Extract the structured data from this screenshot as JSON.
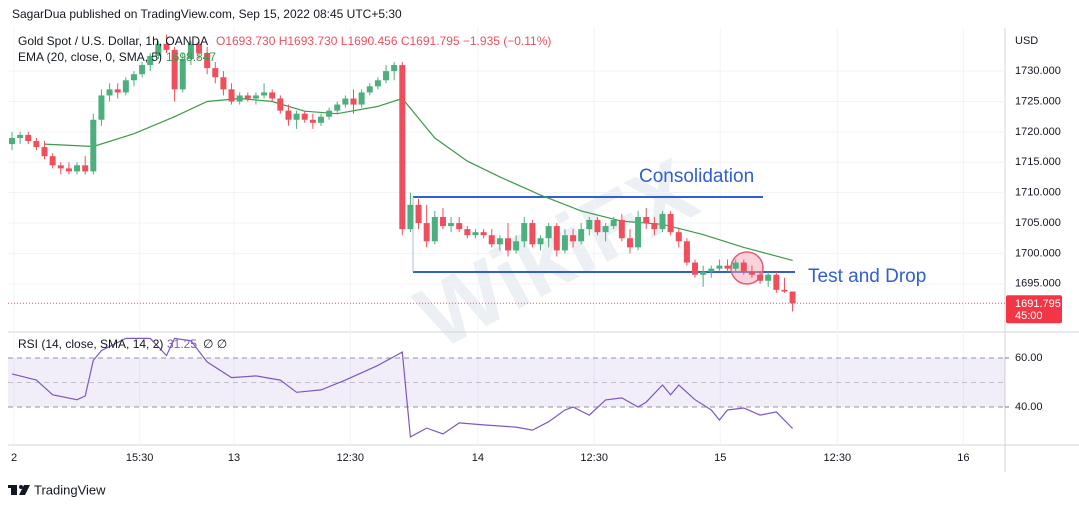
{
  "chart_data": {
    "type": "candlestick",
    "header": "SagarDua published on TradingView.com, Sep 15, 2022 08:45 UTC+5:30",
    "title": "Gold Spot / U.S. Dollar, 1h, OANDA",
    "ohlc_label": "O1693.730 H1693.730 L1690.456 C1691.795 −1.935 (−0.11%)",
    "currency": "USD",
    "up_color": "#4caf7d",
    "down_color": "#ef4f5c",
    "ohlc": [
      [
        1718,
        1720,
        1717,
        1719
      ],
      [
        1719,
        1720,
        1718,
        1719.5
      ],
      [
        1719.5,
        1720,
        1718,
        1718.5
      ],
      [
        1718.5,
        1719,
        1717,
        1717.5
      ],
      [
        1717.5,
        1718.5,
        1715.5,
        1716
      ],
      [
        1716,
        1716.5,
        1714,
        1714.5
      ],
      [
        1714.5,
        1715,
        1713,
        1714
      ],
      [
        1714,
        1715,
        1713,
        1713.5
      ],
      [
        1713.5,
        1715,
        1713,
        1714.5
      ],
      [
        1714.5,
        1716,
        1713,
        1713.5
      ],
      [
        1713.5,
        1723,
        1713,
        1722
      ],
      [
        1722,
        1727,
        1721,
        1726
      ],
      [
        1726,
        1728,
        1725,
        1727
      ],
      [
        1727,
        1728,
        1725.5,
        1726.5
      ],
      [
        1726.5,
        1729,
        1726,
        1728.5
      ],
      [
        1728.5,
        1730,
        1727.5,
        1729.5
      ],
      [
        1729.5,
        1731.5,
        1729,
        1731
      ],
      [
        1731,
        1733,
        1730,
        1732.5
      ],
      [
        1732.5,
        1735,
        1732,
        1734.5
      ],
      [
        1734.5,
        1736,
        1733,
        1733.5
      ],
      [
        1733.5,
        1734,
        1725,
        1727
      ],
      [
        1727,
        1733,
        1726.5,
        1732
      ],
      [
        1732,
        1735,
        1731,
        1734.5
      ],
      [
        1734.5,
        1735,
        1732,
        1733
      ],
      [
        1733,
        1734,
        1729.5,
        1730.5
      ],
      [
        1730.5,
        1731.5,
        1728,
        1729
      ],
      [
        1729,
        1730,
        1726,
        1727
      ],
      [
        1727,
        1728,
        1724.5,
        1725
      ],
      [
        1725,
        1726.5,
        1724.5,
        1726
      ],
      [
        1726,
        1726.5,
        1725,
        1725.5
      ],
      [
        1725.5,
        1726.5,
        1724.5,
        1726
      ],
      [
        1726,
        1728,
        1725.5,
        1726.5
      ],
      [
        1726.5,
        1727,
        1725,
        1725.5
      ],
      [
        1725.5,
        1726,
        1723,
        1723.5
      ],
      [
        1723.5,
        1724.5,
        1721,
        1722
      ],
      [
        1722,
        1723.5,
        1720.5,
        1723
      ],
      [
        1723,
        1723.5,
        1721.5,
        1722
      ],
      [
        1722,
        1723,
        1720.5,
        1721.5
      ],
      [
        1721.5,
        1723,
        1721,
        1722.5
      ],
      [
        1722.5,
        1724,
        1722,
        1723.5
      ],
      [
        1723.5,
        1725,
        1723,
        1724.5
      ],
      [
        1724.5,
        1726,
        1724,
        1725.5
      ],
      [
        1725.5,
        1727,
        1723,
        1724.5
      ],
      [
        1724.5,
        1727,
        1724,
        1726.5
      ],
      [
        1726.5,
        1728,
        1726,
        1727.5
      ],
      [
        1727.5,
        1729,
        1727,
        1728.5
      ],
      [
        1728.5,
        1731,
        1728,
        1730
      ],
      [
        1730,
        1731.5,
        1728.5,
        1731
      ],
      [
        1731,
        1731.5,
        1703,
        1704
      ],
      [
        1704,
        1710,
        1703.5,
        1708
      ],
      [
        1708,
        1709,
        1704,
        1705
      ],
      [
        1705,
        1708,
        1701,
        1702
      ],
      [
        1702,
        1707,
        1701.5,
        1706
      ],
      [
        1706,
        1707.5,
        1704,
        1704.5
      ],
      [
        1704.5,
        1706,
        1703.5,
        1705
      ],
      [
        1705,
        1706,
        1703.5,
        1704
      ],
      [
        1704,
        1704.5,
        1702.5,
        1703
      ],
      [
        1703,
        1704,
        1702.5,
        1703.5
      ],
      [
        1703.5,
        1704,
        1702.5,
        1703
      ],
      [
        1703,
        1704,
        1701,
        1701.5
      ],
      [
        1701.5,
        1703,
        1700.5,
        1702.5
      ],
      [
        1702.5,
        1705,
        1699.5,
        1700.5
      ],
      [
        1700.5,
        1703,
        1700,
        1702
      ],
      [
        1702,
        1706,
        1701,
        1705
      ],
      [
        1705,
        1705.5,
        1701,
        1701.5
      ],
      [
        1701.5,
        1703,
        1700.5,
        1702.5
      ],
      [
        1702.5,
        1705,
        1701,
        1704.5
      ],
      [
        1704.5,
        1705,
        1699.5,
        1700.5
      ],
      [
        1700.5,
        1704,
        1700,
        1703
      ],
      [
        1703,
        1704,
        1701,
        1702
      ],
      [
        1702,
        1705,
        1701.5,
        1704
      ],
      [
        1704,
        1706,
        1703,
        1705.5
      ],
      [
        1705.5,
        1706,
        1703,
        1703.5
      ],
      [
        1703.5,
        1705,
        1702,
        1704.5
      ],
      [
        1704.5,
        1706,
        1704,
        1705.5
      ],
      [
        1705.5,
        1706.5,
        1702,
        1702.5
      ],
      [
        1702.5,
        1704,
        1700,
        1701
      ],
      [
        1701,
        1707,
        1700.5,
        1706
      ],
      [
        1706,
        1707.5,
        1704,
        1705
      ],
      [
        1705,
        1706,
        1703,
        1704
      ],
      [
        1704,
        1707,
        1703.5,
        1706.5
      ],
      [
        1706.5,
        1707,
        1703,
        1703.5
      ],
      [
        1703.5,
        1704,
        1701,
        1702
      ],
      [
        1702,
        1702.5,
        1698,
        1698.5
      ],
      [
        1698.5,
        1699,
        1696,
        1696.5
      ],
      [
        1696.5,
        1698,
        1694.5,
        1697
      ],
      [
        1697,
        1698,
        1696,
        1697.5
      ],
      [
        1697.5,
        1699,
        1697,
        1698
      ],
      [
        1698,
        1699,
        1697,
        1697.5
      ],
      [
        1697.5,
        1699,
        1697,
        1698.5
      ],
      [
        1698.5,
        1699,
        1696.5,
        1697
      ],
      [
        1697,
        1698,
        1696,
        1696.5
      ],
      [
        1696.5,
        1697,
        1695,
        1695.5
      ],
      [
        1695.5,
        1697,
        1694.5,
        1696.5
      ],
      [
        1696.5,
        1697,
        1693.5,
        1694
      ],
      [
        1694,
        1696,
        1693.5,
        1693.73
      ],
      [
        1693.73,
        1693.73,
        1690.456,
        1691.795
      ]
    ],
    "ylim": [
      1687.4,
      1737.1
    ],
    "yticks": [
      {
        "value": 1695,
        "label": "1695.000"
      },
      {
        "value": 1700,
        "label": "1700.000"
      },
      {
        "value": 1705,
        "label": "1705.000"
      },
      {
        "value": 1710,
        "label": "1710.000"
      },
      {
        "value": 1715,
        "label": "1715.000"
      },
      {
        "value": 1720,
        "label": "1720.000"
      },
      {
        "value": 1725,
        "label": "1725.000"
      },
      {
        "value": 1730,
        "label": "1730.000"
      }
    ],
    "xlim": [
      0,
      122
    ],
    "xticks": [
      {
        "value": 0.25,
        "label": "2"
      },
      {
        "value": 15.7,
        "label": "15:30"
      },
      {
        "value": 27.3,
        "label": "13"
      },
      {
        "value": 41.6,
        "label": "12:30"
      },
      {
        "value": 57.3,
        "label": "14"
      },
      {
        "value": 71.6,
        "label": "12:30"
      },
      {
        "value": 87.1,
        "label": "15"
      },
      {
        "value": 101.5,
        "label": "12:30"
      },
      {
        "value": 117,
        "label": "16"
      }
    ],
    "grid": true,
    "ema": {
      "label": "EMA (20, close, 0, SMA, 5)",
      "color": "#3d9a4a",
      "x": [
        4,
        10,
        15,
        20,
        24,
        28,
        32,
        36,
        40,
        45,
        48,
        52,
        56,
        60,
        65,
        70,
        75,
        80,
        85,
        90,
        96
      ],
      "values": [
        1718,
        1717.6,
        1719.7,
        1722.5,
        1725,
        1725.5,
        1725,
        1723.4,
        1723,
        1724.2,
        1725.5,
        1719,
        1715.2,
        1712.6,
        1709.6,
        1707,
        1705.3,
        1704.8,
        1703.1,
        1701,
        1698.847
      ]
    },
    "rsi": {
      "label": "RSI (14, close, SMA, 14, 2)",
      "extra": "∅ ∅",
      "color": "#7e57c2",
      "ylim": [
        24.5,
        70.2
      ],
      "yticks": [
        {
          "value": 60,
          "label": "60.00"
        },
        {
          "value": 40,
          "label": "40.00"
        }
      ],
      "band": [
        40,
        50,
        60
      ],
      "x": [
        0,
        3,
        5,
        8,
        9,
        10,
        11,
        14,
        17,
        19,
        20,
        22,
        24,
        27,
        30,
        33,
        35,
        38,
        41,
        45,
        48,
        49,
        51,
        53,
        55,
        58,
        62,
        64,
        66,
        68,
        69,
        71,
        73,
        75,
        77,
        78,
        80,
        81,
        82,
        84,
        86,
        87,
        88,
        90,
        92,
        94,
        96
      ],
      "values": [
        53.5,
        51,
        45,
        43,
        44.5,
        59,
        63,
        68,
        68,
        61,
        68,
        67,
        58.4,
        52,
        52.7,
        51,
        46,
        47,
        51,
        57,
        62.4,
        27.8,
        31.4,
        29,
        33.5,
        32.7,
        31.8,
        30.6,
        34,
        38.8,
        40,
        36.7,
        42.9,
        43.7,
        40,
        42,
        49,
        45,
        49,
        43,
        38.8,
        34.7,
        38.8,
        39.6,
        36.7,
        38,
        31.25
      ]
    },
    "countdown": "45:00",
    "annotations": [
      "Consolidation",
      "Test and Drop"
    ],
    "footer": "TradingView",
    "watermark": "WikiFX"
  }
}
